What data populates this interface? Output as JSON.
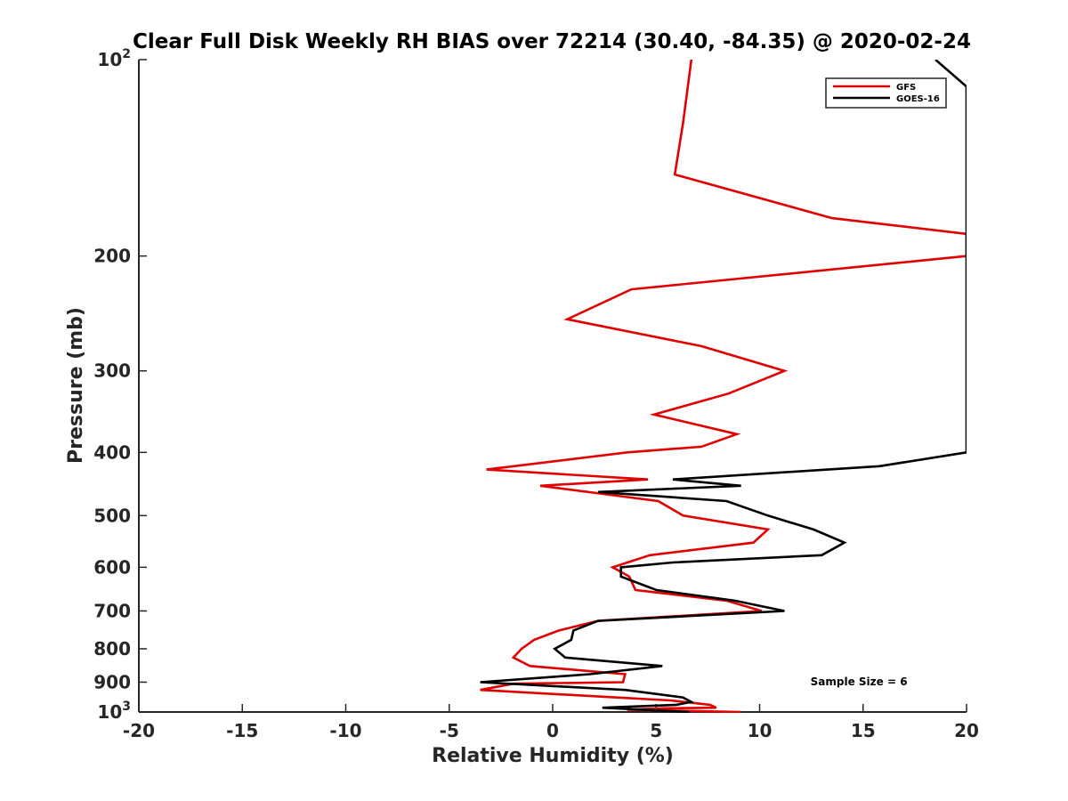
{
  "chart_data": {
    "type": "line",
    "title": "Clear Full Disk Weekly RH BIAS over 72214 (30.40, -84.35) @ 2020-02-24",
    "xlabel": "Relative Humidity (%)",
    "ylabel": "Pressure (mb)",
    "xlim": [
      -20,
      20
    ],
    "ylim": [
      100,
      1000
    ],
    "y_scale": "log",
    "y_reversed": true,
    "x_ticks": [
      "-20",
      "-15",
      "-10",
      "-5",
      "0",
      "5",
      "10",
      "15",
      "20"
    ],
    "y_ticks": [
      {
        "value": 100,
        "base": "10",
        "exp": "2"
      },
      {
        "value": 200,
        "base": "200",
        "exp": ""
      },
      {
        "value": 300,
        "base": "300",
        "exp": ""
      },
      {
        "value": 400,
        "base": "400",
        "exp": ""
      },
      {
        "value": 500,
        "base": "500",
        "exp": ""
      },
      {
        "value": 600,
        "base": "600",
        "exp": ""
      },
      {
        "value": 700,
        "base": "700",
        "exp": ""
      },
      {
        "value": 800,
        "base": "800",
        "exp": ""
      },
      {
        "value": 900,
        "base": "900",
        "exp": ""
      },
      {
        "value": 1000,
        "base": "10",
        "exp": "3"
      }
    ],
    "grid": false,
    "legend_position": "top-right",
    "series": [
      {
        "name": "GFS",
        "color": "#e00000",
        "points": [
          [
            6.7,
            100
          ],
          [
            6.3,
            125
          ],
          [
            5.9,
            150
          ],
          [
            13.5,
            175
          ],
          [
            20.0,
            185
          ],
          [
            20.0,
            200
          ],
          [
            3.8,
            225
          ],
          [
            0.7,
            250
          ],
          [
            7.2,
            275
          ],
          [
            11.2,
            300
          ],
          [
            8.5,
            325
          ],
          [
            4.9,
            350
          ],
          [
            8.9,
            375
          ],
          [
            7.2,
            392
          ],
          [
            3.6,
            400
          ],
          [
            -3.2,
            425
          ],
          [
            4.6,
            440
          ],
          [
            -0.6,
            450
          ],
          [
            5.1,
            475
          ],
          [
            6.3,
            500
          ],
          [
            10.4,
            525
          ],
          [
            9.7,
            550
          ],
          [
            4.7,
            575
          ],
          [
            2.9,
            600
          ],
          [
            3.7,
            620
          ],
          [
            4.0,
            650
          ],
          [
            8.4,
            675
          ],
          [
            10.1,
            700
          ],
          [
            2.2,
            725
          ],
          [
            0.3,
            750
          ],
          [
            -0.9,
            775
          ],
          [
            -1.5,
            800
          ],
          [
            -1.9,
            825
          ],
          [
            -1.1,
            850
          ],
          [
            3.5,
            875
          ],
          [
            3.4,
            900
          ],
          [
            -1.9,
            905
          ],
          [
            -3.5,
            925
          ],
          [
            3.1,
            950
          ],
          [
            5.7,
            960
          ],
          [
            7.6,
            975
          ],
          [
            7.9,
            985
          ],
          [
            5.4,
            987
          ],
          [
            3.6,
            992
          ],
          [
            9.1,
            1000
          ]
        ]
      },
      {
        "name": "GOES-16",
        "color": "#000000",
        "points": [
          [
            18.5,
            100
          ],
          [
            20.0,
            110
          ],
          [
            20.0,
            125
          ],
          [
            20.0,
            400
          ],
          [
            15.8,
            420
          ],
          [
            5.8,
            440
          ],
          [
            9.1,
            450
          ],
          [
            2.2,
            460
          ],
          [
            8.4,
            475
          ],
          [
            10.4,
            500
          ],
          [
            12.6,
            525
          ],
          [
            14.1,
            550
          ],
          [
            13.0,
            575
          ],
          [
            5.8,
            590
          ],
          [
            3.3,
            600
          ],
          [
            3.3,
            620
          ],
          [
            5.0,
            650
          ],
          [
            8.8,
            675
          ],
          [
            11.2,
            700
          ],
          [
            2.2,
            725
          ],
          [
            1.0,
            750
          ],
          [
            0.9,
            775
          ],
          [
            0.1,
            800
          ],
          [
            0.6,
            825
          ],
          [
            5.3,
            850
          ],
          [
            1.8,
            875
          ],
          [
            -3.5,
            900
          ],
          [
            3.5,
            925
          ],
          [
            6.3,
            950
          ],
          [
            6.7,
            965
          ],
          [
            6.0,
            975
          ],
          [
            2.4,
            985
          ],
          [
            6.6,
            1000
          ]
        ]
      }
    ],
    "annotations": [
      {
        "text": "Sample Size = 6",
        "x": 14.8,
        "y": 910
      }
    ]
  }
}
